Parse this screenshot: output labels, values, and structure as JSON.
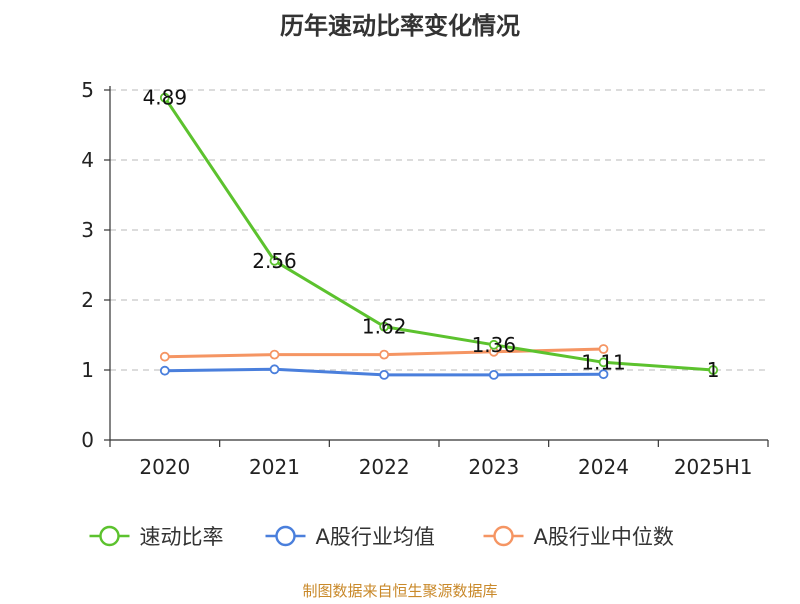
{
  "chart_data": {
    "type": "line",
    "title": "历年速动比率变化情况",
    "categories": [
      "2020",
      "2021",
      "2022",
      "2023",
      "2024",
      "2025H1"
    ],
    "ylim": [
      0,
      5
    ],
    "yticks": [
      "0",
      "1",
      "2",
      "3",
      "4",
      "5"
    ],
    "grid": true,
    "legend_position": "bottom",
    "series": [
      {
        "name": "速动比率",
        "color": "#5cc22e",
        "values": [
          4.89,
          2.56,
          1.62,
          1.36,
          1.11,
          1.0
        ],
        "labels": [
          "4.89",
          "2.56",
          "1.62",
          "1.36",
          "1.11",
          "1"
        ]
      },
      {
        "name": "A股行业均值",
        "color": "#4a7fdc",
        "values": [
          0.99,
          1.01,
          0.93,
          0.93,
          0.94,
          null
        ]
      },
      {
        "name": "A股行业中位数",
        "color": "#f59563",
        "values": [
          1.19,
          1.22,
          1.22,
          1.26,
          1.3,
          null
        ]
      }
    ],
    "source": "制图数据来自恒生聚源数据库"
  }
}
